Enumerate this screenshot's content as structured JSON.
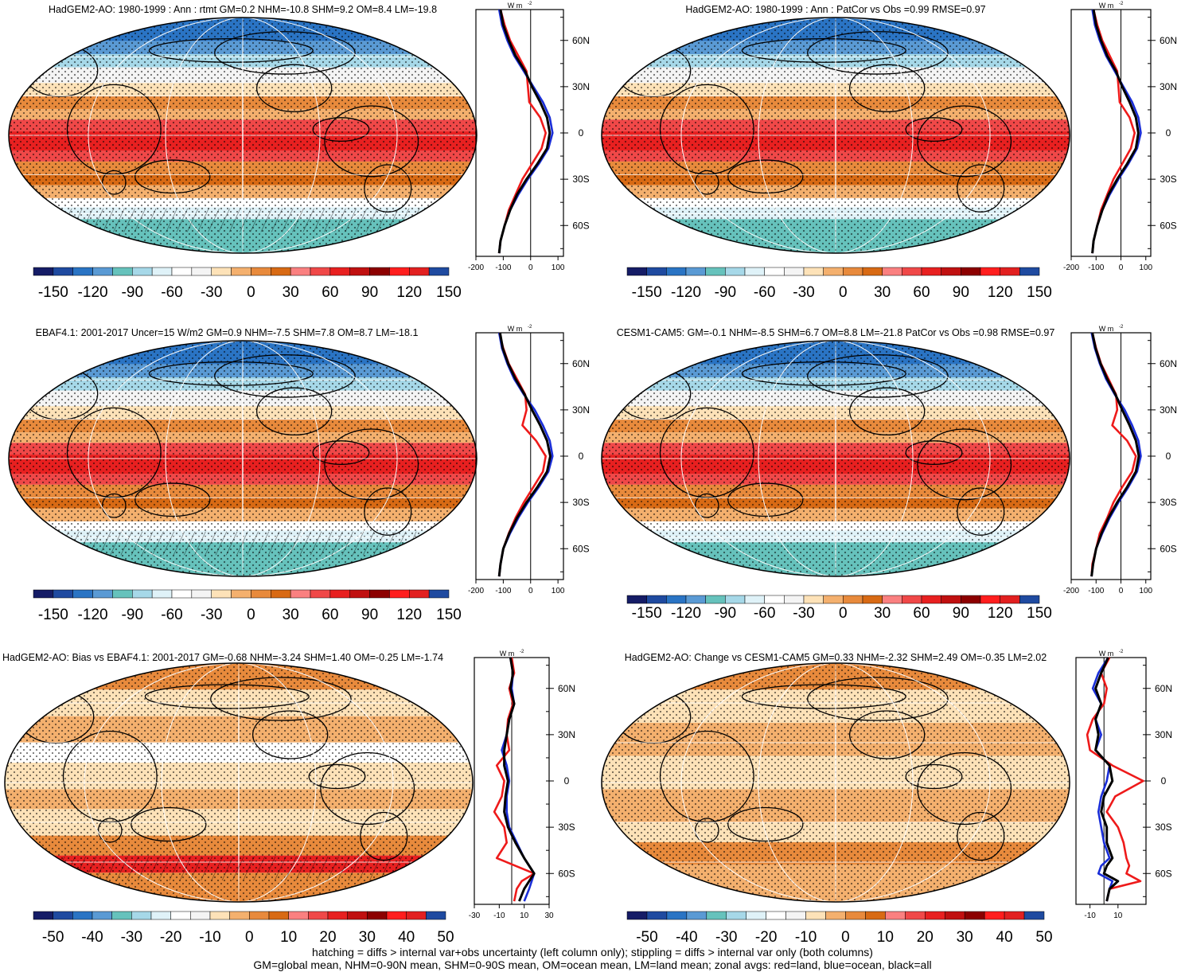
{
  "colors": {
    "ocean_line": "#1a2ed8",
    "land_line": "#ee1a1a",
    "all_line": "#000000",
    "palette": [
      "#151c66",
      "#1f4aa0",
      "#2a74c4",
      "#5a9ad4",
      "#66c2bc",
      "#a6d8e8",
      "#dff2f8",
      "#ffffff",
      "#f2f2f2",
      "#fde2b8",
      "#f4b06e",
      "#e88a3c",
      "#d86a14",
      "#fa6f6f",
      "#f0282d",
      "#e41212",
      "#b80c0c",
      "#8c0000",
      "#ff1e1e",
      "#e22020",
      "#1f4aa0"
    ]
  },
  "unit_label": "W m",
  "unit_exp": "-2",
  "panels": [
    {
      "id": "p1",
      "title": "HadGEM2-AO: 1980-1999 : Ann : rtmt GM=0.2 NHM=-10.8 SHM=9.2 OM=8.4 LM=-19.8",
      "colorbar_labels": [
        "-150",
        "-120",
        "-90",
        "-60",
        "-30",
        "0",
        "30",
        "60",
        "90",
        "120",
        "150"
      ],
      "zonal_xticks": [
        "-200",
        "-100",
        "0",
        "100"
      ],
      "zonal_xlim": [
        -200,
        120
      ],
      "lat_labels": [
        "60N",
        "30N",
        "0",
        "30S",
        "60S"
      ],
      "kind": "abs"
    },
    {
      "id": "p2",
      "title": "HadGEM2-AO: 1980-1999 : Ann : PatCor vs Obs =0.99 RMSE=0.97",
      "colorbar_labels": [
        "-150",
        "-120",
        "-90",
        "-60",
        "-30",
        "0",
        "30",
        "60",
        "90",
        "120",
        "150"
      ],
      "zonal_xticks": [
        "-200",
        "-100",
        "0",
        "100"
      ],
      "zonal_xlim": [
        -200,
        120
      ],
      "lat_labels": [
        "60N",
        "30N",
        "0",
        "30S",
        "60S"
      ],
      "kind": "abs"
    },
    {
      "id": "p3",
      "title": "EBAF4.1: 2001-2017 Uncer=15 W/m2 GM=0.9 NHM=-7.5 SHM=7.8 OM=8.7 LM=-18.1",
      "colorbar_labels": [
        "-150",
        "-120",
        "-90",
        "-60",
        "-30",
        "0",
        "30",
        "60",
        "90",
        "120",
        "150"
      ],
      "zonal_xticks": [
        "-200",
        "-100",
        "0",
        "100"
      ],
      "zonal_xlim": [
        -200,
        120
      ],
      "lat_labels": [
        "60N",
        "30N",
        "0",
        "30S",
        "60S"
      ],
      "kind": "abs"
    },
    {
      "id": "p4",
      "title": "CESM1-CAM5: GM=-0.1 NHM=-8.5 SHM=6.7 OM=8.8 LM=-21.8 PatCor vs Obs =0.98 RMSE=0.97",
      "colorbar_labels": [
        "-150",
        "-120",
        "-90",
        "-60",
        "-30",
        "0",
        "30",
        "60",
        "90",
        "120",
        "150"
      ],
      "zonal_xticks": [
        "-200",
        "-100",
        "0",
        "100"
      ],
      "zonal_xlim": [
        -200,
        120
      ],
      "lat_labels": [
        "60N",
        "30N",
        "0",
        "30S",
        "60S"
      ],
      "kind": "abs"
    },
    {
      "id": "p5",
      "title": "HadGEM2-AO: Bias vs EBAF4.1: 2001-2017 GM=-0.68 NHM=-3.24 SHM=1.40 OM=-0.25 LM=-1.74",
      "colorbar_labels": [
        "-50",
        "-40",
        "-30",
        "-20",
        "-10",
        "0",
        "10",
        "20",
        "30",
        "40",
        "50"
      ],
      "zonal_xticks": [
        "-30",
        "-10",
        "10",
        "30"
      ],
      "zonal_xlim": [
        -30,
        30
      ],
      "lat_labels": [
        "60N",
        "30N",
        "0",
        "30S",
        "60S"
      ],
      "kind": "bias"
    },
    {
      "id": "p6",
      "title": "HadGEM2-AO: Change vs CESM1-CAM5 GM=0.33 NHM=-2.32 SHM=2.49 OM=-0.35 LM=2.02",
      "colorbar_labels": [
        "-50",
        "-40",
        "-30",
        "-20",
        "-10",
        "0",
        "10",
        "20",
        "30",
        "40",
        "50"
      ],
      "zonal_xticks": [
        "-10",
        "10"
      ],
      "zonal_xlim": [
        -20,
        30
      ],
      "lat_labels": [
        "60N",
        "30N",
        "0",
        "30S",
        "60S"
      ],
      "kind": "change"
    }
  ],
  "chart_data": [
    {
      "type": "line",
      "panel": "p1",
      "title": "HadGEM2-AO: 1980-1999 : Ann : rtmt GM=0.2 NHM=-10.8 SHM=9.2 OM=8.4 LM=-19.8",
      "xlabel": "W m-2",
      "x_range": [
        -200,
        120
      ],
      "lat": [
        80,
        70,
        60,
        50,
        40,
        30,
        20,
        10,
        0,
        -10,
        -20,
        -30,
        -40,
        -50,
        -60,
        -70,
        -78
      ],
      "series": [
        {
          "name": "land",
          "values": [
            -110,
            -95,
            -75,
            -45,
            -15,
            -10,
            -5,
            35,
            55,
            40,
            5,
            -30,
            -55,
            -80,
            -95,
            -110,
            -115
          ]
        },
        {
          "name": "ocean",
          "values": [
            -115,
            -105,
            -85,
            -60,
            -25,
            10,
            45,
            70,
            80,
            65,
            30,
            -10,
            -45,
            -75,
            -95,
            -110,
            -115
          ]
        },
        {
          "name": "all",
          "values": [
            -110,
            -100,
            -80,
            -55,
            -20,
            5,
            35,
            60,
            70,
            60,
            25,
            -15,
            -50,
            -75,
            -95,
            -110,
            -115
          ]
        }
      ]
    },
    {
      "type": "line",
      "panel": "p2",
      "title": "HadGEM2-AO: 1980-1999 : Ann : PatCor vs Obs =0.99 RMSE=0.97",
      "xlabel": "W m-2",
      "x_range": [
        -200,
        120
      ],
      "lat": [
        80,
        70,
        60,
        50,
        40,
        30,
        20,
        10,
        0,
        -10,
        -20,
        -30,
        -40,
        -50,
        -60,
        -70,
        -78
      ],
      "series": [
        {
          "name": "land",
          "values": [
            -110,
            -95,
            -75,
            -45,
            -15,
            -10,
            -5,
            35,
            55,
            40,
            5,
            -30,
            -55,
            -80,
            -95,
            -110,
            -115
          ]
        },
        {
          "name": "ocean",
          "values": [
            -115,
            -105,
            -85,
            -60,
            -25,
            10,
            45,
            70,
            80,
            65,
            30,
            -10,
            -45,
            -75,
            -95,
            -110,
            -115
          ]
        },
        {
          "name": "all",
          "values": [
            -110,
            -100,
            -80,
            -55,
            -20,
            5,
            35,
            60,
            70,
            60,
            25,
            -15,
            -50,
            -75,
            -95,
            -110,
            -115
          ]
        }
      ]
    },
    {
      "type": "line",
      "panel": "p3",
      "title": "EBAF4.1: 2001-2017 Uncer=15 W/m2 GM=0.9 NHM=-7.5 SHM=7.8 OM=8.7 LM=-18.1",
      "xlabel": "W m-2",
      "x_range": [
        -200,
        120
      ],
      "lat": [
        80,
        70,
        60,
        50,
        40,
        30,
        20,
        10,
        0,
        -10,
        -20,
        -30,
        -40,
        -50,
        -60,
        -70,
        -78
      ],
      "series": [
        {
          "name": "land",
          "values": [
            -115,
            -100,
            -80,
            -50,
            -20,
            -15,
            -30,
            20,
            55,
            45,
            10,
            -25,
            -55,
            -80,
            -100,
            -110,
            -115
          ]
        },
        {
          "name": "ocean",
          "values": [
            -115,
            -105,
            -85,
            -60,
            -25,
            15,
            45,
            70,
            80,
            65,
            30,
            -10,
            -45,
            -75,
            -100,
            -110,
            -115
          ]
        },
        {
          "name": "all",
          "values": [
            -112,
            -102,
            -82,
            -55,
            -22,
            5,
            35,
            60,
            72,
            60,
            25,
            -15,
            -50,
            -78,
            -100,
            -110,
            -115
          ]
        }
      ]
    },
    {
      "type": "line",
      "panel": "p4",
      "title": "CESM1-CAM5: GM=-0.1 NHM=-8.5 SHM=6.7 OM=8.8 LM=-21.8 PatCor vs Obs =0.98 RMSE=0.97",
      "xlabel": "W m-2",
      "x_range": [
        -200,
        120
      ],
      "lat": [
        80,
        70,
        60,
        50,
        40,
        30,
        20,
        10,
        0,
        -10,
        -20,
        -30,
        -40,
        -50,
        -60,
        -70,
        -78
      ],
      "series": [
        {
          "name": "land",
          "values": [
            -115,
            -100,
            -80,
            -50,
            -20,
            -15,
            -35,
            25,
            60,
            45,
            5,
            -30,
            -55,
            -85,
            -100,
            -115,
            -118
          ]
        },
        {
          "name": "ocean",
          "values": [
            -118,
            -105,
            -85,
            -60,
            -25,
            15,
            45,
            70,
            80,
            65,
            30,
            -10,
            -45,
            -75,
            -100,
            -112,
            -118
          ]
        },
        {
          "name": "all",
          "values": [
            -115,
            -102,
            -82,
            -55,
            -22,
            5,
            35,
            60,
            72,
            60,
            25,
            -15,
            -50,
            -78,
            -100,
            -112,
            -118
          ]
        }
      ]
    },
    {
      "type": "line",
      "panel": "p5",
      "title": "HadGEM2-AO: Bias vs EBAF4.1: 2001-2017 GM=-0.68 NHM=-3.24 SHM=1.40 OM=-0.25 LM=-1.74",
      "xlabel": "W m-2",
      "x_range": [
        -30,
        30
      ],
      "lat": [
        80,
        70,
        60,
        50,
        40,
        30,
        20,
        10,
        0,
        -10,
        -20,
        -30,
        -40,
        -50,
        -60,
        -65,
        -70,
        -78
      ],
      "series": [
        {
          "name": "land",
          "values": [
            0,
            2,
            -2,
            1,
            -3,
            -4,
            -2,
            -12,
            -6,
            -8,
            -14,
            -6,
            -4,
            -12,
            18,
            8,
            4,
            2
          ]
        },
        {
          "name": "ocean",
          "values": [
            -1,
            1,
            0,
            2,
            -2,
            -4,
            -8,
            -4,
            -2,
            -4,
            -4,
            -2,
            4,
            10,
            18,
            16,
            14,
            10
          ]
        },
        {
          "name": "all",
          "values": [
            -1,
            1,
            -1,
            2,
            -2,
            -4,
            -6,
            -6,
            -3,
            -5,
            -6,
            -3,
            3,
            10,
            18,
            14,
            10,
            6
          ]
        }
      ]
    },
    {
      "type": "line",
      "panel": "p6",
      "title": "HadGEM2-AO: Change vs CESM1-CAM5 GM=0.33 NHM=-2.32 SHM=2.49 OM=-0.35 LM=2.02",
      "xlabel": "W m-2",
      "x_range": [
        -20,
        30
      ],
      "lat": [
        80,
        70,
        60,
        50,
        40,
        30,
        20,
        10,
        0,
        -10,
        -20,
        -30,
        -40,
        -50,
        -55,
        -60,
        -65,
        -70,
        -78
      ],
      "series": [
        {
          "name": "land",
          "values": [
            4,
            -2,
            2,
            0,
            -8,
            -12,
            -10,
            6,
            28,
            8,
            2,
            10,
            14,
            16,
            18,
            16,
            26,
            4,
            2
          ]
        },
        {
          "name": "ocean",
          "values": [
            3,
            -4,
            -8,
            -2,
            -6,
            -2,
            -6,
            4,
            2,
            -2,
            -4,
            -2,
            0,
            4,
            -2,
            -4,
            6,
            4,
            2
          ]
        },
        {
          "name": "all",
          "values": [
            3,
            -2,
            -6,
            -2,
            -6,
            -4,
            -6,
            4,
            6,
            0,
            -2,
            2,
            2,
            6,
            2,
            0,
            10,
            4,
            2
          ]
        }
      ]
    }
  ],
  "footer": {
    "line1": "hatching = diffs > internal var+obs uncertainty (left column only); stippling = diffs > internal var only (both columns)",
    "line2": "GM=global mean, NHM=0-90N mean, SHM=0-90S mean, OM=ocean mean, LM=land mean; zonal avgs: red=land, blue=ocean, black=all"
  }
}
